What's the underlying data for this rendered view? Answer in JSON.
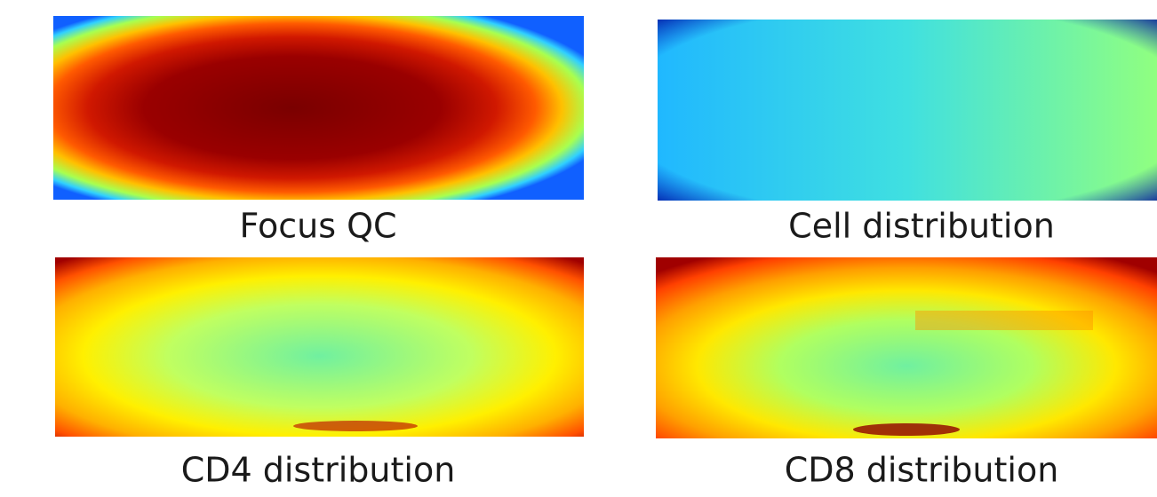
{
  "panels": [
    {
      "caption": "Focus QC"
    },
    {
      "caption": "Cell distribution"
    },
    {
      "caption": "CD4 distribution"
    },
    {
      "caption": "CD8 distribution"
    }
  ]
}
